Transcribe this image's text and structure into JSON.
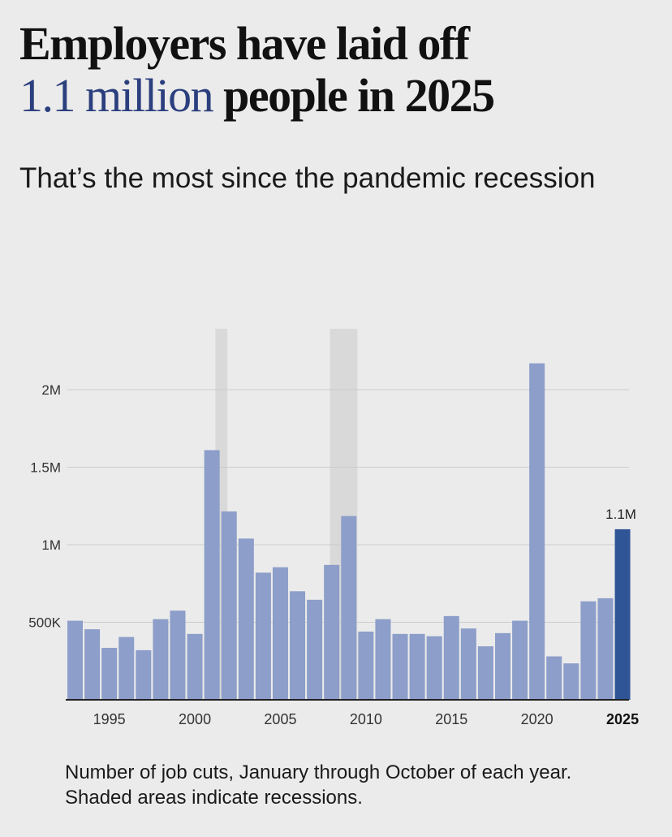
{
  "headline": {
    "line1": "Employers have laid off",
    "highlight": "1.1 million",
    "line2_rest": " people in 2025"
  },
  "subtitle": "That’s the most since the pandemic recession",
  "footnote": {
    "line1": "Number of job cuts, January through October of each year.",
    "line2": "Shaded areas indicate recessions."
  },
  "colors": {
    "bar": "#8c9ec9",
    "highlight_bar": "#2f5597",
    "recession": "#d9d9d9",
    "grid": "#cccccc",
    "baseline": "#222222",
    "headline_highlight": "#2b3f7e"
  },
  "chart_data": {
    "type": "bar",
    "x": [
      1993,
      1994,
      1995,
      1996,
      1997,
      1998,
      1999,
      2000,
      2001,
      2002,
      2003,
      2004,
      2005,
      2006,
      2007,
      2008,
      2009,
      2010,
      2011,
      2012,
      2013,
      2014,
      2015,
      2016,
      2017,
      2018,
      2019,
      2020,
      2021,
      2022,
      2023,
      2024,
      2025
    ],
    "values": [
      510000,
      455000,
      335000,
      405000,
      320000,
      520000,
      575000,
      425000,
      1610000,
      1215000,
      1040000,
      820000,
      855000,
      700000,
      645000,
      870000,
      1185000,
      440000,
      520000,
      425000,
      425000,
      410000,
      540000,
      460000,
      345000,
      430000,
      510000,
      2170000,
      280000,
      235000,
      635000,
      655000,
      1100000
    ],
    "highlight": {
      "x": 2025,
      "label": "1.1M"
    },
    "recessions": [
      [
        2001.2,
        2001.9
      ],
      [
        2007.9,
        2009.5
      ]
    ],
    "xticks": [
      1995,
      2000,
      2005,
      2010,
      2015,
      2020,
      2025
    ],
    "xtick_labels": [
      "1995",
      "2000",
      "2005",
      "2010",
      "2015",
      "2020",
      "2025"
    ],
    "yticks": [
      500000,
      1000000,
      1500000,
      2000000
    ],
    "ytick_labels": [
      "500K",
      "1M",
      "1.5M",
      "2M"
    ],
    "ylim": [
      0,
      2400000
    ],
    "grid": true,
    "title": "Employers have laid off 1.1 million people in 2025",
    "subtitle": "That’s the most since the pandemic recession",
    "xlabel": "",
    "ylabel": ""
  }
}
